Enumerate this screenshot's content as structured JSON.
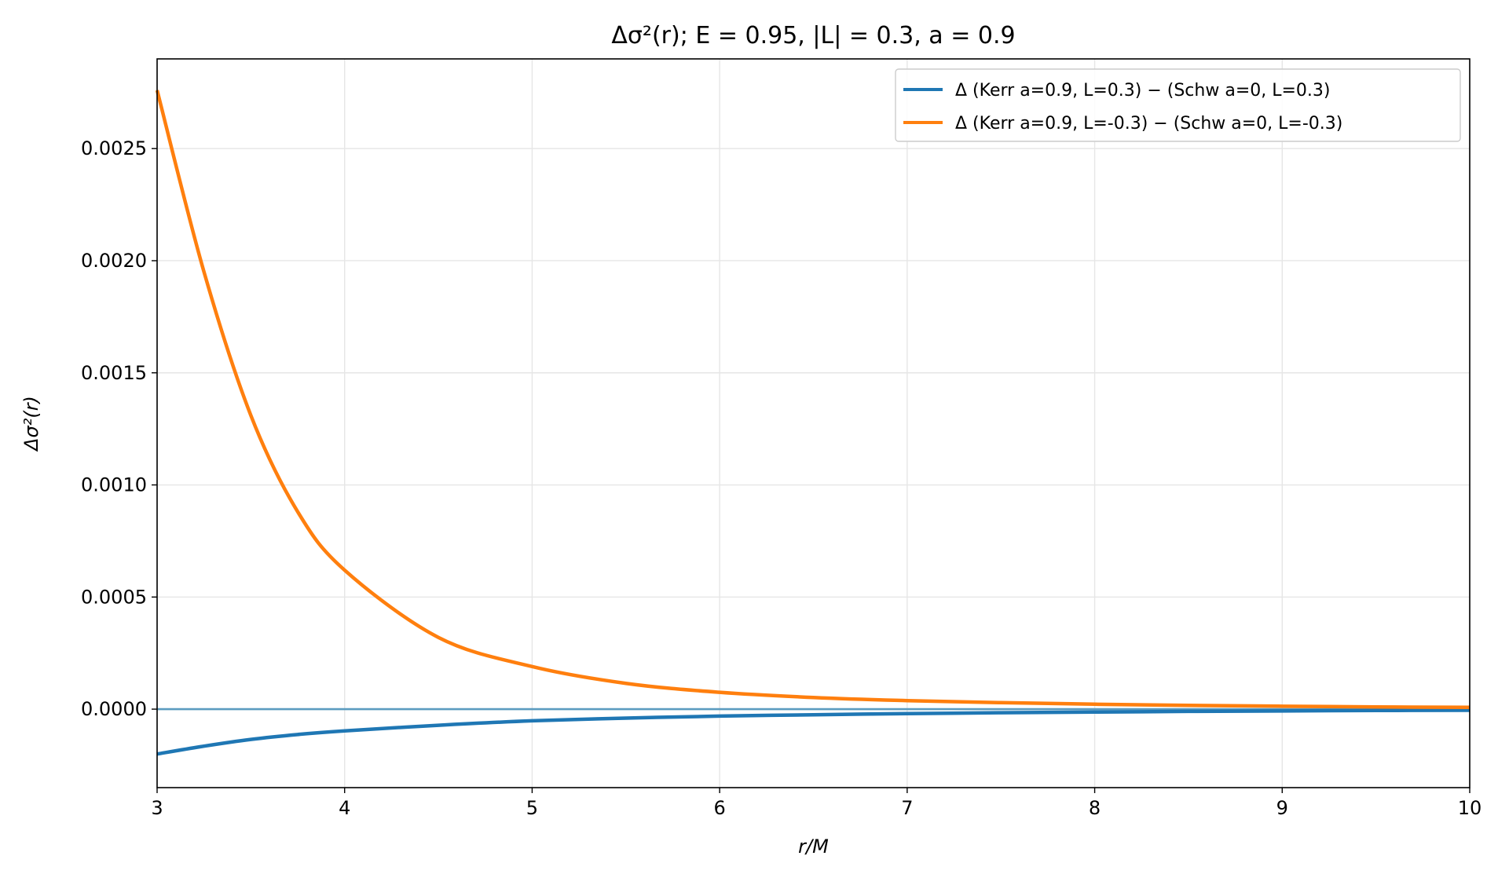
{
  "chart_data": {
    "type": "line",
    "title": "Δσ²(r);  E = 0.95,  |L| = 0.3,  a = 0.9",
    "xlabel": "r/M",
    "ylabel": "Δσ²(r)",
    "xlim": [
      3,
      10
    ],
    "ylim": [
      -0.00035,
      0.0029
    ],
    "x_ticks": [
      "3",
      "4",
      "5",
      "6",
      "7",
      "8",
      "9",
      "10"
    ],
    "y_ticks": [
      "0.0000",
      "0.0005",
      "0.0010",
      "0.0015",
      "0.0020",
      "0.0025"
    ],
    "grid": true,
    "legend_position": "top-right",
    "zero_line": true,
    "colors": {
      "series1": "#1f77b4",
      "series2": "#ff7f0e",
      "zero_line": "#5b9bbf",
      "grid": "#e6e6e6"
    },
    "x": [
      3.0,
      3.25,
      3.5,
      3.75,
      4.0,
      4.5,
      5.0,
      5.5,
      6.0,
      6.5,
      7.0,
      7.5,
      8.0,
      8.5,
      9.0,
      9.5,
      10.0
    ],
    "series": [
      {
        "name": "Δ (Kerr a=0.9, L=0.3) − (Schw a=0, L=0.3)",
        "values": [
          -0.0002,
          -0.000165,
          -0.000135,
          -0.000113,
          -9.7e-05,
          -7.2e-05,
          -5.2e-05,
          -4e-05,
          -3.1e-05,
          -2.5e-05,
          -2e-05,
          -1.6e-05,
          -1.3e-05,
          -1e-05,
          -8e-06,
          -6e-06,
          -5e-06
        ]
      },
      {
        "name": "Δ (Kerr a=0.9, L=-0.3) − (Schw a=0, L=-0.3)",
        "values": [
          0.00276,
          0.00195,
          0.00131,
          0.00088,
          0.00062,
          0.00032,
          0.00019,
          0.000115,
          7.5e-05,
          5.2e-05,
          3.8e-05,
          2.9e-05,
          2.2e-05,
          1.7e-05,
          1.3e-05,
          1e-05,
          8e-06
        ]
      }
    ]
  }
}
